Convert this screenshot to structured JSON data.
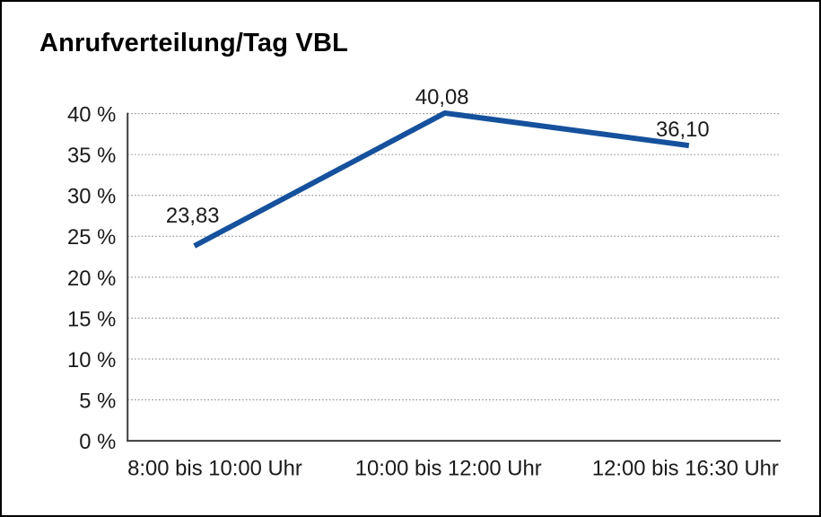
{
  "chart_data": {
    "type": "line",
    "title": "Anrufverteilung/Tag VBL",
    "categories": [
      "8:00 bis 10:00 Uhr",
      "10:00 bis 12:00 Uhr",
      "12:00 bis 16:30 Uhr"
    ],
    "values": [
      23.83,
      40.08,
      36.1
    ],
    "data_labels": [
      "23,83",
      "40,08",
      "36,10"
    ],
    "xlabel": "",
    "ylabel": "",
    "ylim": [
      0,
      40
    ],
    "ytick_step": 5,
    "ytick_labels": [
      "0 %",
      "5 %",
      "10 %",
      "15 %",
      "20 %",
      "25 %",
      "30 %",
      "35 %",
      "40 %"
    ],
    "grid": "horizontal-dotted",
    "legend_position": "none",
    "line_color": "#15519D"
  },
  "colors": {
    "line": "#15519D",
    "grid": "#828282",
    "axis": "#3c3c3c",
    "text": "#1a1a1a",
    "frame_border": "#000000",
    "background": "#ffffff"
  }
}
